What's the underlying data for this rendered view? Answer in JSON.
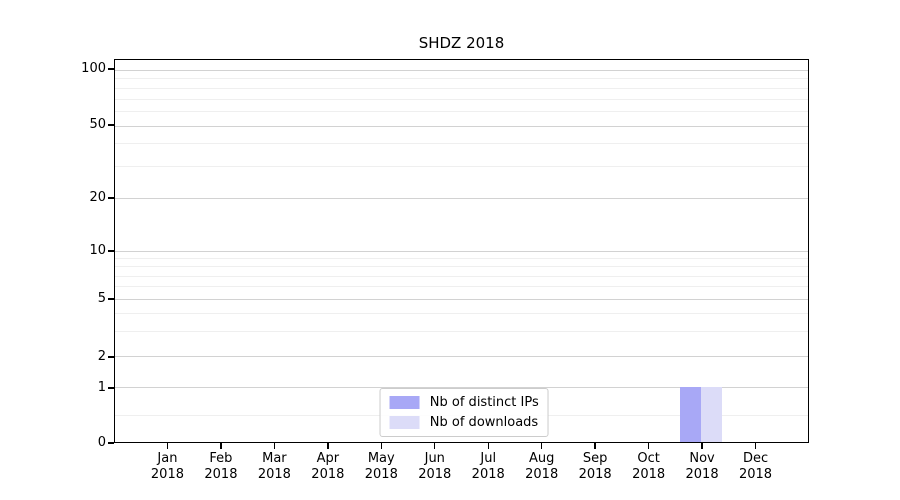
{
  "chart_data": {
    "type": "bar",
    "title": "SHDZ 2018",
    "xlabel": "",
    "ylabel": "",
    "categories": [
      {
        "month": "Jan",
        "year": "2018"
      },
      {
        "month": "Feb",
        "year": "2018"
      },
      {
        "month": "Mar",
        "year": "2018"
      },
      {
        "month": "Apr",
        "year": "2018"
      },
      {
        "month": "May",
        "year": "2018"
      },
      {
        "month": "Jun",
        "year": "2018"
      },
      {
        "month": "Jul",
        "year": "2018"
      },
      {
        "month": "Aug",
        "year": "2018"
      },
      {
        "month": "Sep",
        "year": "2018"
      },
      {
        "month": "Oct",
        "year": "2018"
      },
      {
        "month": "Nov",
        "year": "2018"
      },
      {
        "month": "Dec",
        "year": "2018"
      }
    ],
    "series": [
      {
        "name": "Nb of distinct IPs",
        "color": "#a8a8f6",
        "values": [
          0,
          0,
          0,
          0,
          0,
          0,
          0,
          0,
          0,
          0,
          1,
          0
        ]
      },
      {
        "name": "Nb of downloads",
        "color": "#dcdcf8",
        "values": [
          0,
          0,
          0,
          0,
          0,
          0,
          0,
          0,
          0,
          0,
          1,
          0
        ]
      }
    ],
    "y_axis": {
      "scale": "symlog",
      "ticks": [
        0,
        1,
        2,
        5,
        10,
        20,
        50,
        100
      ],
      "ylim": [
        0,
        112
      ]
    },
    "legend": {
      "position": "lower center"
    },
    "grid": "major-and-minor"
  },
  "colors": {
    "bar_distinct_ips": "#a8a8f6",
    "bar_downloads": "#dcdcf8",
    "grid_major": "#d2d2d2",
    "grid_minor": "#efefef",
    "axis": "#000000",
    "background": "#ffffff",
    "legend_border": "#cccccc"
  }
}
